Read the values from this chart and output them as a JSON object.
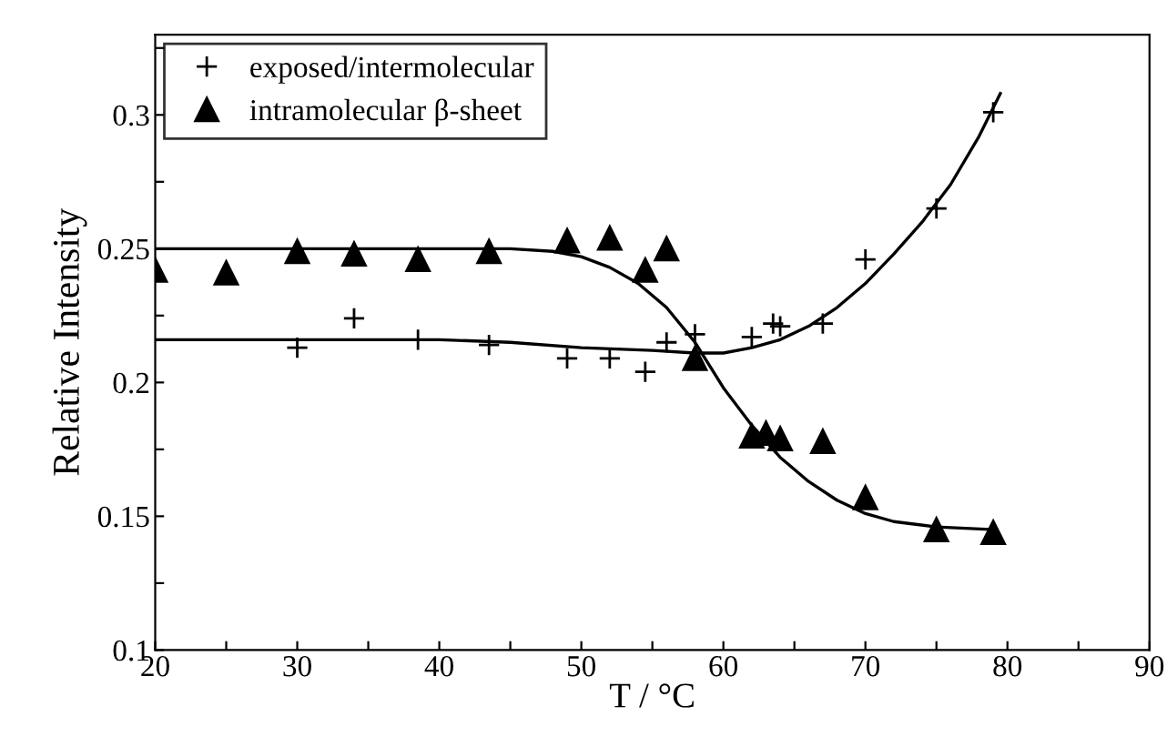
{
  "chart_data": {
    "type": "scatter",
    "xlabel": "T / °C",
    "ylabel": "Relative Intensity",
    "xlim": [
      20,
      90
    ],
    "ylim": [
      0.1,
      0.33
    ],
    "xticks": [
      20,
      {
        "value": 25,
        "label": null
      },
      30,
      {
        "value": 35,
        "label": null
      },
      40,
      {
        "value": 45,
        "label": null
      },
      50,
      {
        "value": 55,
        "label": null
      },
      60,
      {
        "value": 65,
        "label": null
      },
      70,
      {
        "value": 75,
        "label": null
      },
      80,
      {
        "value": 85,
        "label": null
      },
      90
    ],
    "yticks": [
      0.1,
      {
        "value": 0.125,
        "label": null
      },
      0.15,
      {
        "value": 0.175,
        "label": null
      },
      0.2,
      {
        "value": 0.225,
        "label": null
      },
      0.25,
      {
        "value": 0.275,
        "label": null
      },
      0.3,
      {
        "value": 0.325,
        "label": null
      }
    ],
    "legend": "top left",
    "grid": false,
    "series": [
      {
        "name": "exposed/intermolecular",
        "marker": "cross",
        "color": "#000000",
        "x": [
          30,
          34,
          38.5,
          43.5,
          49,
          52,
          54.5,
          56,
          58,
          62,
          63.5,
          64,
          67,
          70,
          75,
          79
        ],
        "values": [
          0.213,
          0.224,
          0.216,
          0.214,
          0.209,
          0.209,
          0.204,
          0.215,
          0.218,
          0.217,
          0.222,
          0.221,
          0.222,
          0.246,
          0.265,
          0.301
        ]
      },
      {
        "name": "intramolecular β-sheet",
        "marker": "triangle",
        "color": "#000000",
        "x": [
          20,
          25,
          30,
          34,
          38.5,
          43.5,
          49,
          52,
          54.5,
          56,
          58,
          62,
          63,
          64,
          67,
          70,
          75,
          79
        ],
        "values": [
          0.242,
          0.241,
          0.249,
          0.248,
          0.246,
          0.249,
          0.253,
          0.254,
          0.242,
          0.25,
          0.209,
          0.18,
          0.181,
          0.179,
          0.178,
          0.157,
          0.145,
          0.144
        ]
      },
      {
        "type": "line",
        "marker": "none",
        "color": "#000000",
        "x": [
          20,
          40,
          45,
          50,
          55,
          58,
          60,
          62,
          64,
          66,
          68,
          70,
          72,
          74,
          76,
          78,
          79.5
        ],
        "values": [
          0.216,
          0.216,
          0.215,
          0.213,
          0.212,
          0.211,
          0.211,
          0.213,
          0.216,
          0.221,
          0.228,
          0.237,
          0.248,
          0.26,
          0.274,
          0.292,
          0.308
        ]
      },
      {
        "type": "line",
        "marker": "none",
        "color": "#000000",
        "x": [
          20,
          45,
          48,
          50,
          52,
          54,
          56,
          58,
          60,
          62,
          64,
          66,
          68,
          70,
          72,
          75,
          79
        ],
        "values": [
          0.25,
          0.25,
          0.249,
          0.247,
          0.243,
          0.237,
          0.228,
          0.215,
          0.198,
          0.184,
          0.172,
          0.163,
          0.156,
          0.151,
          0.148,
          0.146,
          0.145
        ]
      }
    ]
  }
}
